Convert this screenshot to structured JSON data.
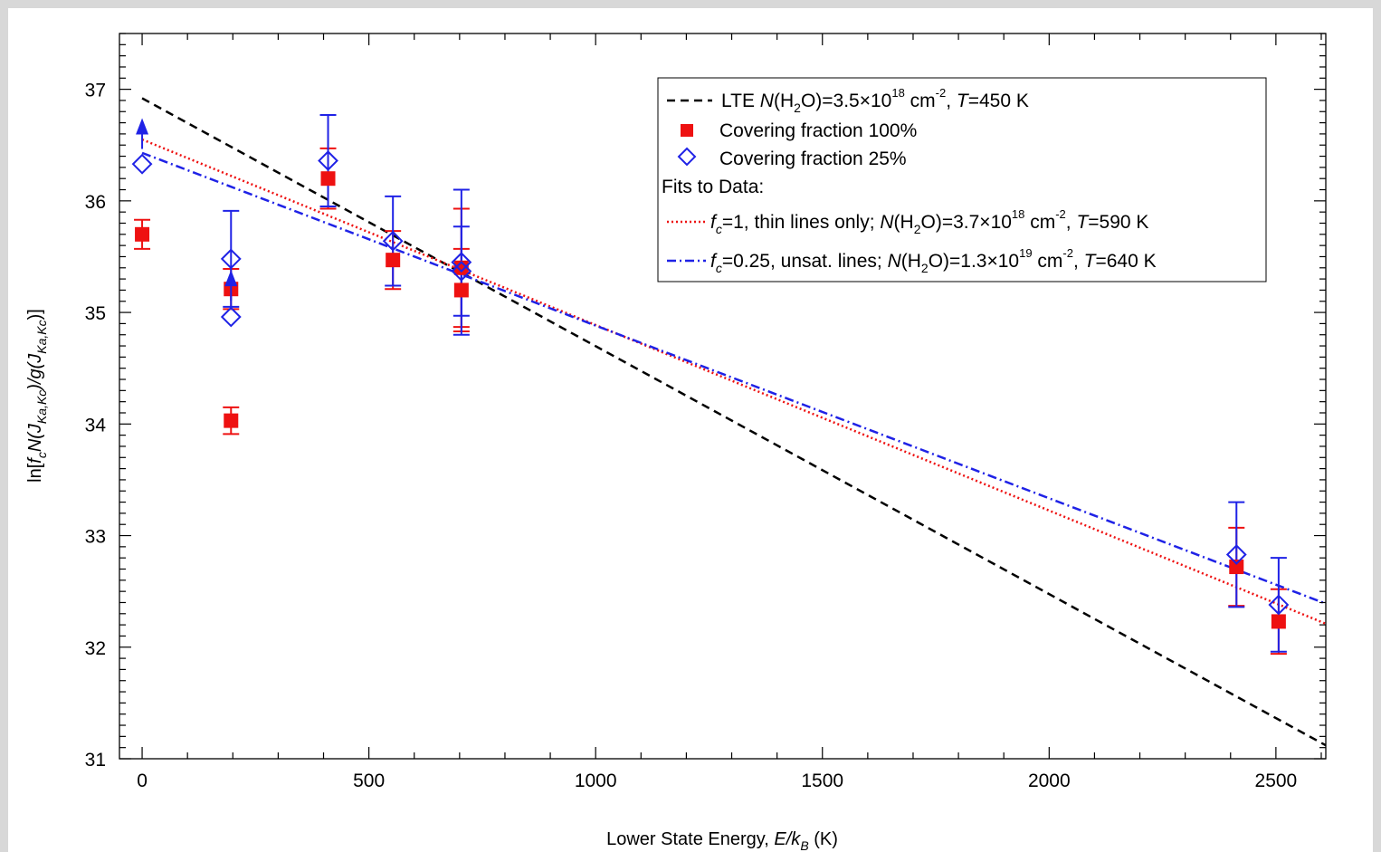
{
  "chart_data": {
    "type": "scatter",
    "xlabel": "Lower State Energy, E/kB (K)",
    "ylabel": "ln[fcN(JKa,Kc)/g(JKa,Kc)]",
    "xlim": [
      -50,
      2610
    ],
    "ylim": [
      31,
      37.5
    ],
    "x_ticks": [
      "0",
      "500",
      "1000",
      "1500",
      "2000",
      "2500"
    ],
    "y_ticks": [
      "31",
      "32",
      "33",
      "34",
      "35",
      "36",
      "37"
    ],
    "grid": false,
    "legend_position": "top-right",
    "series": [
      {
        "name": "Covering fraction 100%",
        "marker": "filled-square",
        "color": "#ee1111",
        "points": [
          {
            "x": 0,
            "y": 35.7,
            "err": 0.13
          },
          {
            "x": 196,
            "y": 35.21,
            "err": 0.18
          },
          {
            "x": 196,
            "y": 34.03,
            "err": 0.12
          },
          {
            "x": 410,
            "y": 36.2,
            "err": 0.27
          },
          {
            "x": 553,
            "y": 35.47,
            "err": 0.26
          },
          {
            "x": 704,
            "y": 35.2,
            "err": 0.37
          },
          {
            "x": 704,
            "y": 35.4,
            "err": 0.53
          },
          {
            "x": 2413,
            "y": 32.72,
            "err": 0.35
          },
          {
            "x": 2506,
            "y": 32.23,
            "err": 0.29
          }
        ]
      },
      {
        "name": "Covering fraction 25%",
        "marker": "open-diamond",
        "color": "#1f22e6",
        "points": [
          {
            "x": 0,
            "y": 36.33,
            "err": 0
          },
          {
            "x": 196,
            "y": 35.48,
            "err": 0.43
          },
          {
            "x": 196,
            "y": 34.96,
            "err": 0
          },
          {
            "x": 410,
            "y": 36.36,
            "err": 0.41
          },
          {
            "x": 553,
            "y": 35.64,
            "err": 0.4
          },
          {
            "x": 704,
            "y": 35.45,
            "err": 0.65
          },
          {
            "x": 704,
            "y": 35.37,
            "err": 0.4
          },
          {
            "x": 2413,
            "y": 32.83,
            "err": 0.47
          },
          {
            "x": 2506,
            "y": 32.38,
            "err": 0.42
          }
        ]
      },
      {
        "name": "lower limits",
        "marker": "up-triangle",
        "color": "#1f22e6",
        "points": [
          {
            "x": 0,
            "y": 36.66
          },
          {
            "x": 196,
            "y": 35.3
          }
        ]
      }
    ],
    "lines": [
      {
        "name": "LTE",
        "style": "dashed",
        "color": "#000000",
        "x": [
          0,
          2610
        ],
        "y": [
          36.92,
          31.12
        ]
      },
      {
        "name": "fc=1 fit",
        "style": "dotted",
        "color": "#ee1111",
        "x": [
          0,
          2610
        ],
        "y": [
          36.55,
          32.21
        ]
      },
      {
        "name": "fc=0.25 fit",
        "style": "dashdot",
        "color": "#1f22e6",
        "x": [
          0,
          2610
        ],
        "y": [
          36.43,
          32.39
        ]
      }
    ],
    "legend": {
      "lte": {
        "a": "LTE ",
        "b": "N",
        "c": "(H",
        "d": "2",
        "e": "O)=3.5×10",
        "f": "18",
        "g": " cm",
        "h": "-2",
        "i": ", ",
        "j": "T",
        "k": "=450 K"
      },
      "cf100": "Covering fraction 100%",
      "cf25": "Covering fraction 25%",
      "fits_header": "Fits to Data:",
      "fit1": {
        "a": "f",
        "b": "c",
        "c": "=1, thin lines only; ",
        "d": "N",
        "e": "(H",
        "f": "2",
        "g": "O)=3.7×10",
        "h": "18",
        "i": " cm",
        "j": "-2",
        "k": ", ",
        "l": "T",
        "m": "=590 K"
      },
      "fit2": {
        "a": "f",
        "b": "c",
        "c": "=0.25, unsat. lines; ",
        "d": "N",
        "e": "(H",
        "f": "2",
        "g": "O)=1.3×10",
        "h": "19",
        "i": " cm",
        "j": "-2",
        "k": ", ",
        "l": "T",
        "m": "=640 K"
      }
    },
    "xlabel_parts": {
      "a": "Lower State Energy, ",
      "b": "E/k",
      "c": "B",
      "d": " (K)"
    },
    "ylabel_parts": {
      "a": "ln[",
      "b": "f",
      "c": "c",
      "d": "N(J",
      "e": "Ka,Kc",
      "f": ")/g(J",
      "g": "Ka,Kc",
      "h": ")]"
    }
  }
}
